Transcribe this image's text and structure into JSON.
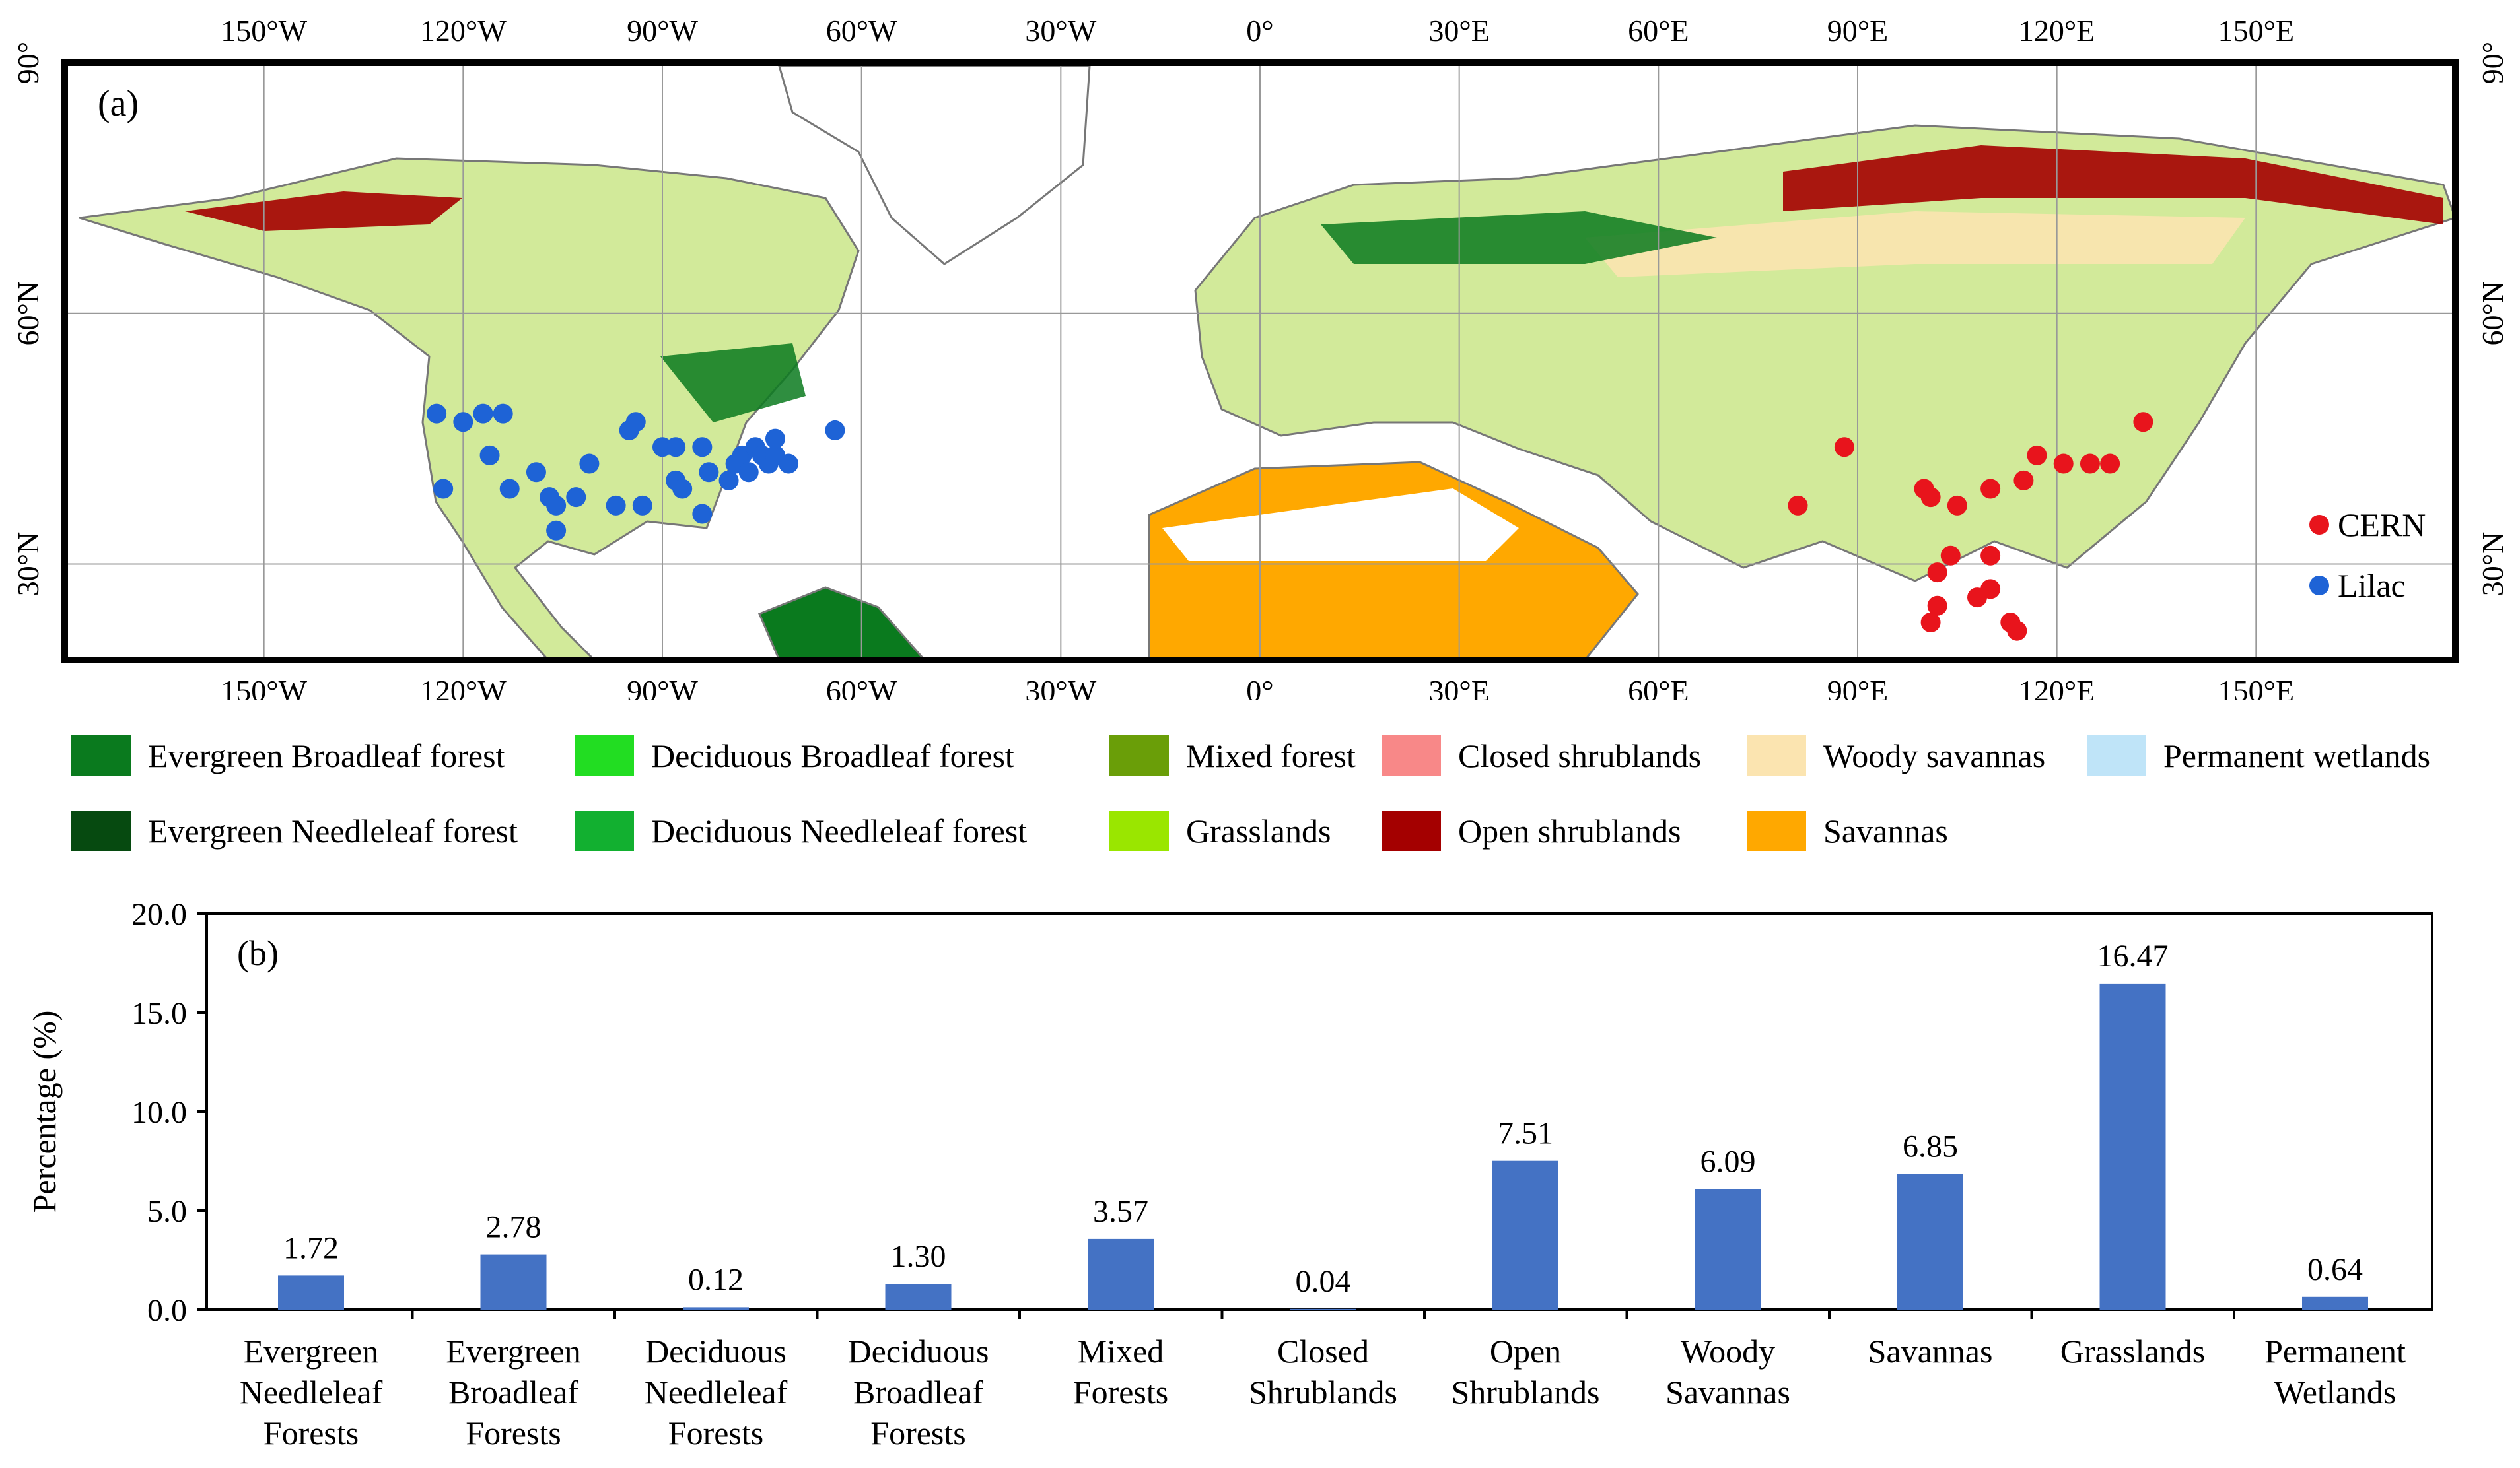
{
  "map": {
    "panel_label": "(a)",
    "lon_ticks": [
      "150°W",
      "120°W",
      "90°W",
      "60°W",
      "30°W",
      "0°",
      "30°E",
      "60°E",
      "90°E",
      "120°E",
      "150°E"
    ],
    "lat_ticks": [
      "90°",
      "60°N",
      "30°N"
    ],
    "sites_legend": [
      {
        "name": "CERN",
        "color": "#e8141c"
      },
      {
        "name": "Lilac",
        "color": "#1e63d6"
      }
    ],
    "land_cover_legend": [
      {
        "name": "Evergreen Broadleaf forest",
        "color": "#0a7a1e"
      },
      {
        "name": "Deciduous Broadleaf forest",
        "color": "#22dd22"
      },
      {
        "name": "Mixed forest",
        "color": "#6a9e08"
      },
      {
        "name": "Closed shrublands",
        "color": "#f88888"
      },
      {
        "name": "Woody savannas",
        "color": "#fbe4b0"
      },
      {
        "name": "Permanent wetlands",
        "color": "#bfe4f8"
      },
      {
        "name": "Evergreen Needleleaf forest",
        "color": "#064a10"
      },
      {
        "name": "Deciduous Needleleaf forest",
        "color": "#12b030"
      },
      {
        "name": "Grasslands",
        "color": "#9ae600"
      },
      {
        "name": "Open shrublands",
        "color": "#a40000"
      },
      {
        "name": "Savannas",
        "color": "#ffa800"
      }
    ],
    "cern_sites": [
      [
        88,
        44
      ],
      [
        81,
        37
      ],
      [
        100,
        39
      ],
      [
        101,
        38
      ],
      [
        105,
        37
      ],
      [
        110,
        39
      ],
      [
        115,
        40
      ],
      [
        117,
        43
      ],
      [
        121,
        42
      ],
      [
        125,
        42
      ],
      [
        128,
        42
      ],
      [
        133,
        47
      ],
      [
        102,
        29
      ],
      [
        104,
        31
      ],
      [
        108,
        26
      ],
      [
        110,
        31
      ],
      [
        110,
        27
      ],
      [
        102,
        25
      ],
      [
        101,
        23
      ],
      [
        113,
        23
      ],
      [
        114,
        22
      ]
    ],
    "lilac_sites": [
      [
        -124,
        48
      ],
      [
        -120,
        47
      ],
      [
        -117,
        48
      ],
      [
        -114,
        48
      ],
      [
        -116,
        43
      ],
      [
        -123,
        39
      ],
      [
        -113,
        39
      ],
      [
        -109,
        41
      ],
      [
        -107,
        38
      ],
      [
        -106,
        37
      ],
      [
        -106,
        34
      ],
      [
        -103,
        38
      ],
      [
        -101,
        42
      ],
      [
        -97,
        37
      ],
      [
        -95,
        46
      ],
      [
        -94,
        47
      ],
      [
        -93,
        37
      ],
      [
        -90,
        44
      ],
      [
        -88,
        44
      ],
      [
        -88,
        40
      ],
      [
        -87,
        39
      ],
      [
        -84,
        44
      ],
      [
        -84,
        36
      ],
      [
        -83,
        41
      ],
      [
        -80,
        40
      ],
      [
        -79,
        42
      ],
      [
        -78,
        43
      ],
      [
        -77,
        41
      ],
      [
        -76,
        44
      ],
      [
        -75,
        43
      ],
      [
        -74,
        42
      ],
      [
        -73,
        43
      ],
      [
        -73,
        45
      ],
      [
        -71,
        42
      ],
      [
        -64,
        46
      ]
    ]
  },
  "chart_data": {
    "type": "bar",
    "panel_label": "(b)",
    "ylabel": "Percentage (%)",
    "ylim": [
      0,
      20
    ],
    "yticks": [
      "0.0",
      "5.0",
      "10.0",
      "15.0",
      "20.0"
    ],
    "bar_color": "#4472c4",
    "categories": [
      [
        "Evergreen",
        "Needleleaf",
        "Forests"
      ],
      [
        "Evergreen",
        "Broadleaf",
        "Forests"
      ],
      [
        "Deciduous",
        "Needleleaf",
        "Forests"
      ],
      [
        "Deciduous",
        "Broadleaf",
        "Forests"
      ],
      [
        "Mixed",
        "Forests"
      ],
      [
        "Closed",
        "Shrublands"
      ],
      [
        "Open",
        "Shrublands"
      ],
      [
        "Woody",
        "Savannas"
      ],
      [
        "Savannas"
      ],
      [
        "Grasslands"
      ],
      [
        "Permanent",
        "Wetlands"
      ]
    ],
    "values": [
      1.72,
      2.78,
      0.12,
      1.3,
      3.57,
      0.04,
      7.51,
      6.09,
      6.85,
      16.47,
      0.64
    ],
    "value_labels": [
      "1.72",
      "2.78",
      "0.12",
      "1.30",
      "3.57",
      "0.04",
      "7.51",
      "6.09",
      "6.85",
      "16.47",
      "0.64"
    ]
  }
}
